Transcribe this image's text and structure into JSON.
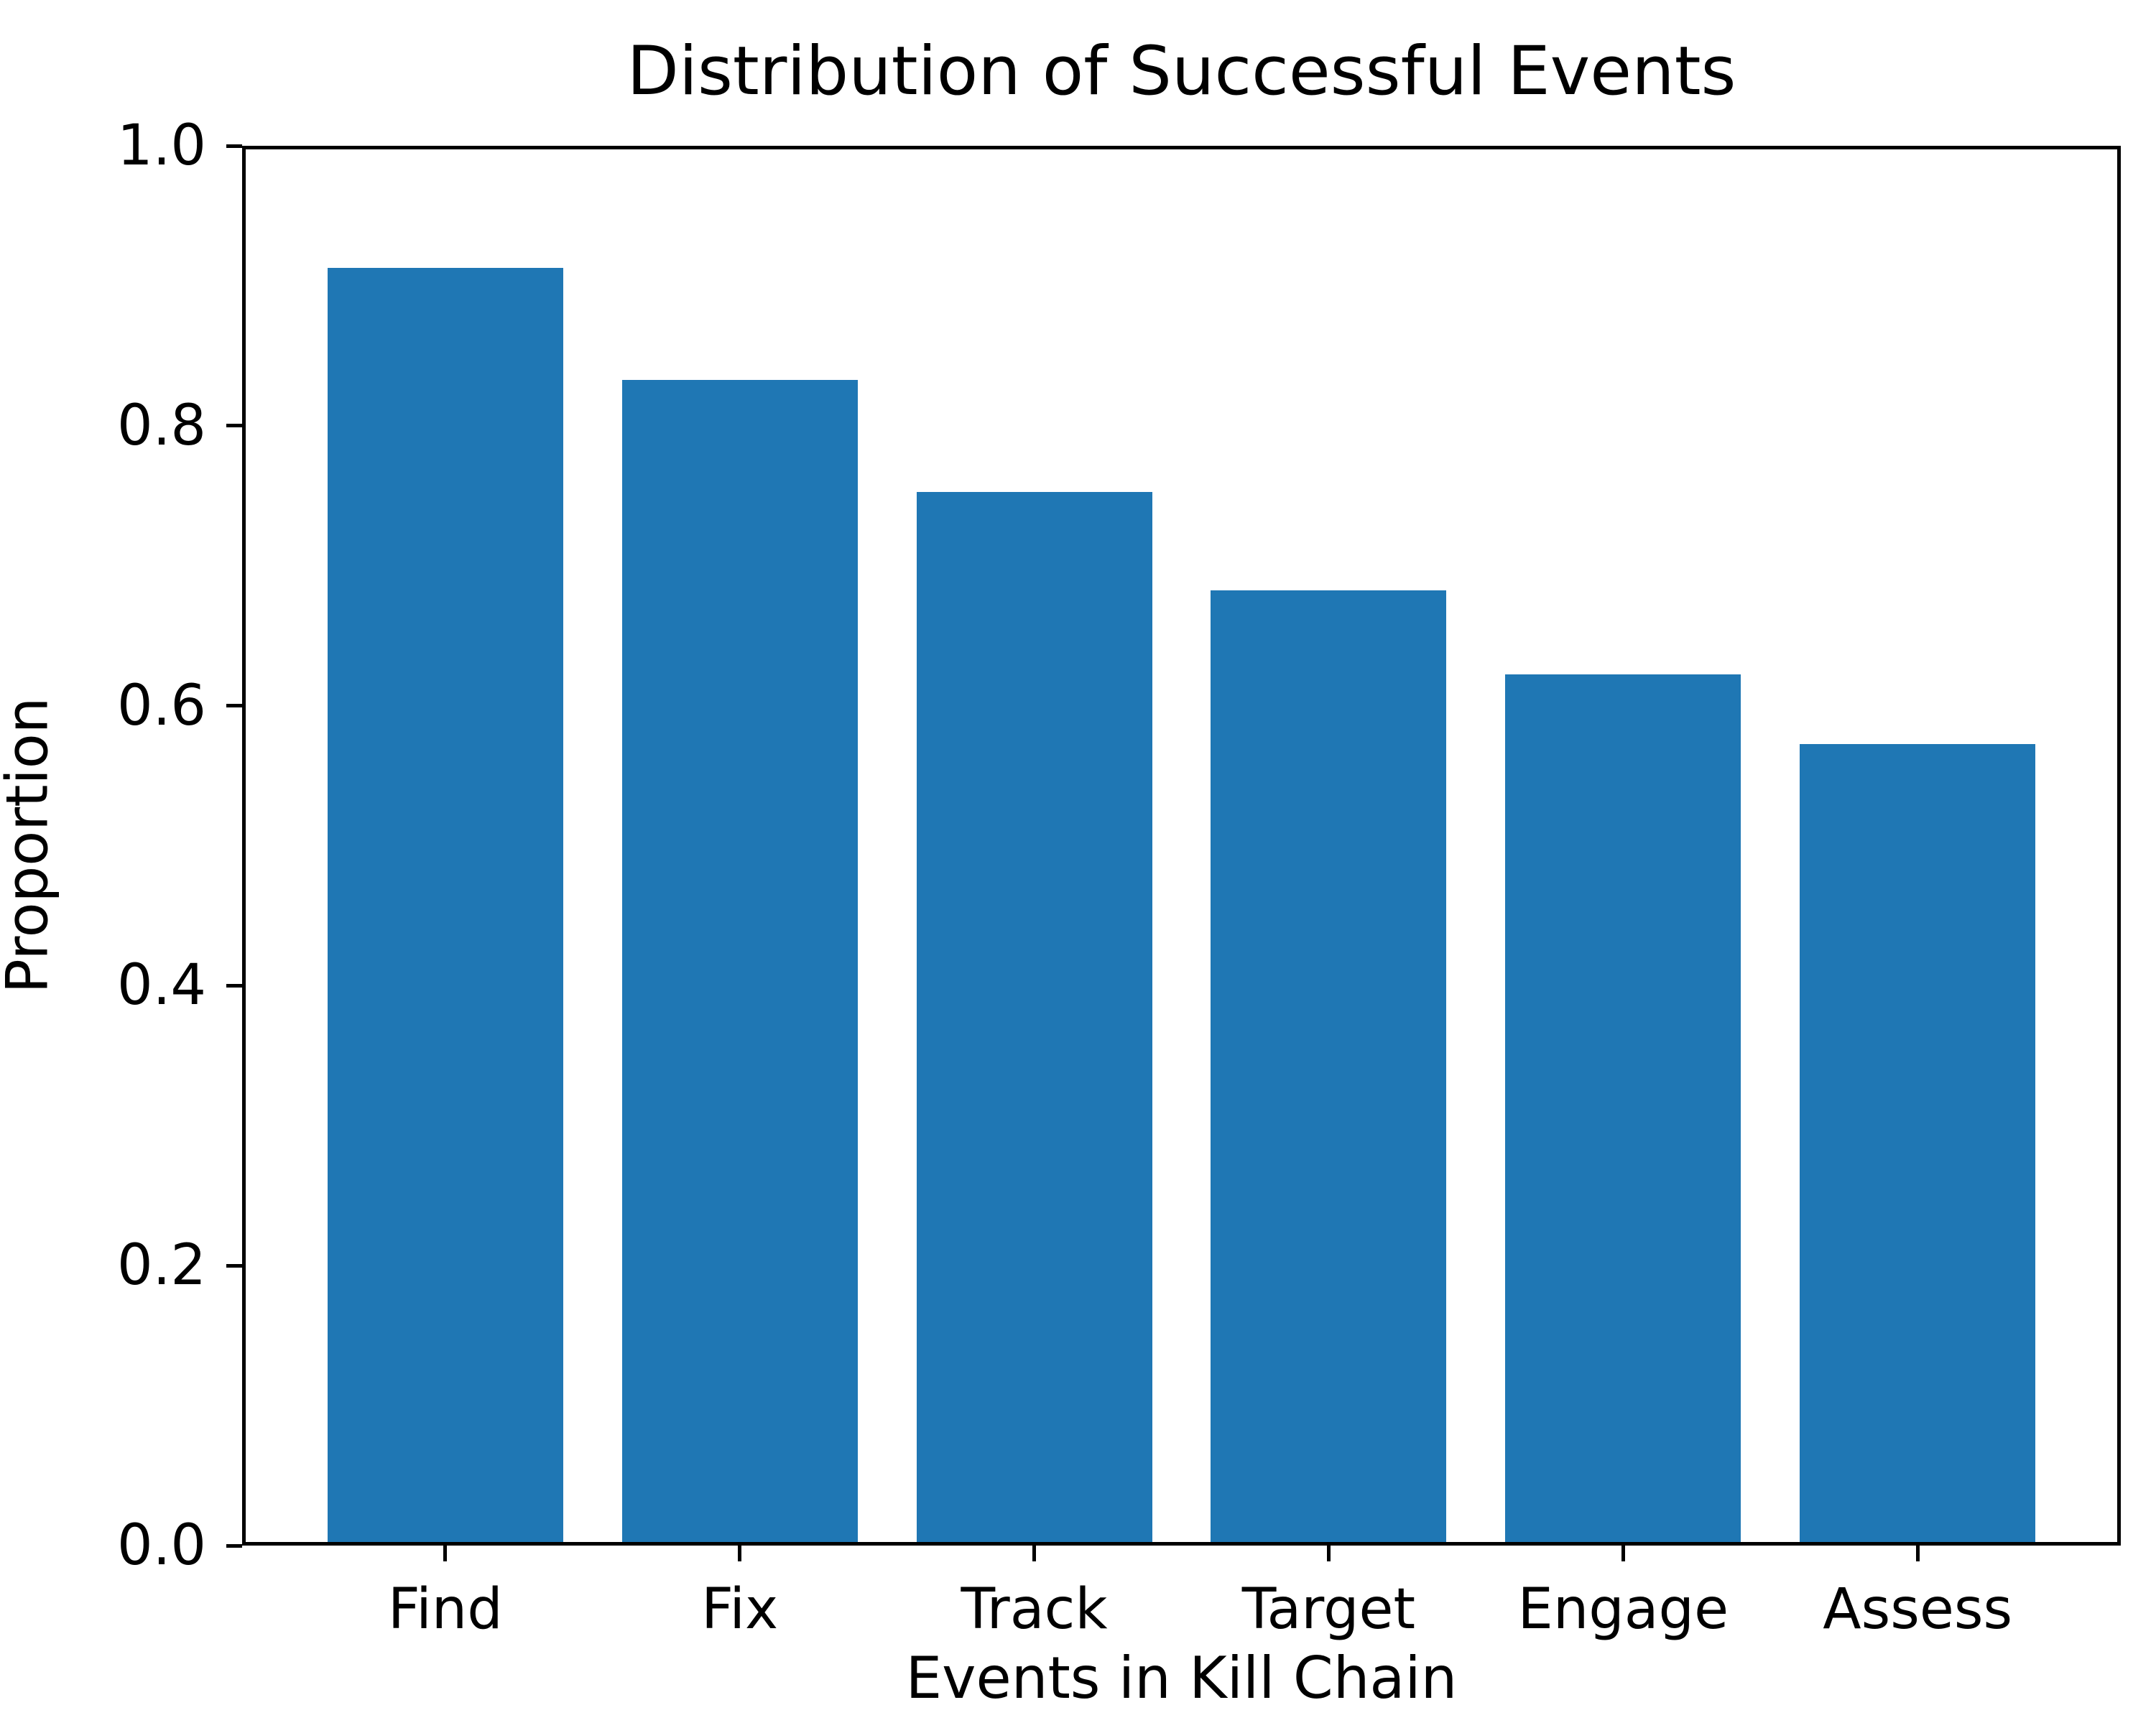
{
  "chart_data": {
    "type": "bar",
    "title": "Distribution of Successful Events",
    "xlabel": "Events in Kill Chain",
    "ylabel": "Proportion",
    "categories": [
      "Find",
      "Fix",
      "Track",
      "Target",
      "Engage",
      "Assess"
    ],
    "values": [
      0.91,
      0.83,
      0.75,
      0.68,
      0.62,
      0.57
    ],
    "ylim": [
      0.0,
      1.0
    ],
    "yticks": [
      0.0,
      0.2,
      0.4,
      0.6,
      0.8,
      1.0
    ],
    "ytick_labels": [
      "0.0",
      "0.2",
      "0.4",
      "0.6",
      "0.8",
      "1.0"
    ],
    "bar_color": "#1f77b4",
    "bar_width_fraction": 0.8,
    "grid": false,
    "legend": "none"
  }
}
